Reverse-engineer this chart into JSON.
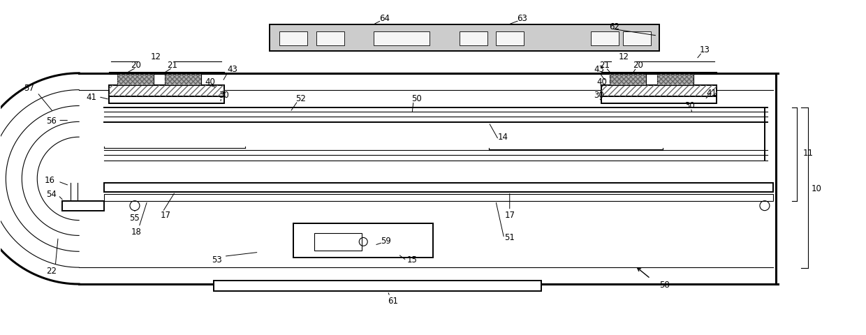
{
  "bg_color": "#ffffff",
  "line_color": "#000000",
  "fig_width": 12.4,
  "fig_height": 4.81
}
